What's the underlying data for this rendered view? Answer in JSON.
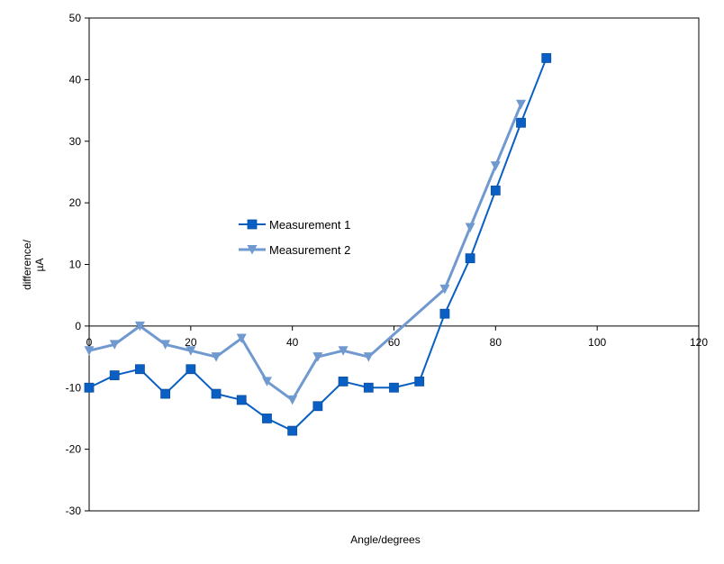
{
  "chart_data": {
    "type": "line",
    "xlabel": "Angle/degrees",
    "ylabel_lines": [
      "difference/",
      "µA"
    ],
    "xlim": [
      0,
      120
    ],
    "ylim": [
      -30,
      50
    ],
    "xticks": [
      0,
      20,
      40,
      60,
      80,
      100,
      120
    ],
    "yticks": [
      -30,
      -20,
      -10,
      0,
      10,
      20,
      30,
      40,
      50
    ],
    "grid": false,
    "legend_placement": "middle-left",
    "series": [
      {
        "name": "Measurement 1",
        "marker": "square",
        "color": "#0a5fc4",
        "x": [
          0,
          5,
          10,
          15,
          20,
          25,
          30,
          35,
          40,
          45,
          50,
          55,
          60,
          65,
          70,
          75,
          80,
          85,
          90
        ],
        "y": [
          -10,
          -8,
          -7,
          -11,
          -7,
          -11,
          -12,
          -15,
          -17,
          -13,
          -9,
          -10,
          -10,
          -9,
          2,
          11,
          22,
          33,
          43.5
        ]
      },
      {
        "name": "Measurement 2",
        "marker": "triangle-down",
        "color": "#7099d0",
        "x": [
          0,
          5,
          10,
          15,
          20,
          25,
          30,
          35,
          40,
          45,
          50,
          55,
          70,
          75,
          80,
          85
        ],
        "y": [
          -4,
          -3,
          0,
          -3,
          -4,
          -5,
          -2,
          -9,
          -12,
          -5,
          -4,
          -5,
          6,
          16,
          26,
          36
        ]
      }
    ]
  }
}
